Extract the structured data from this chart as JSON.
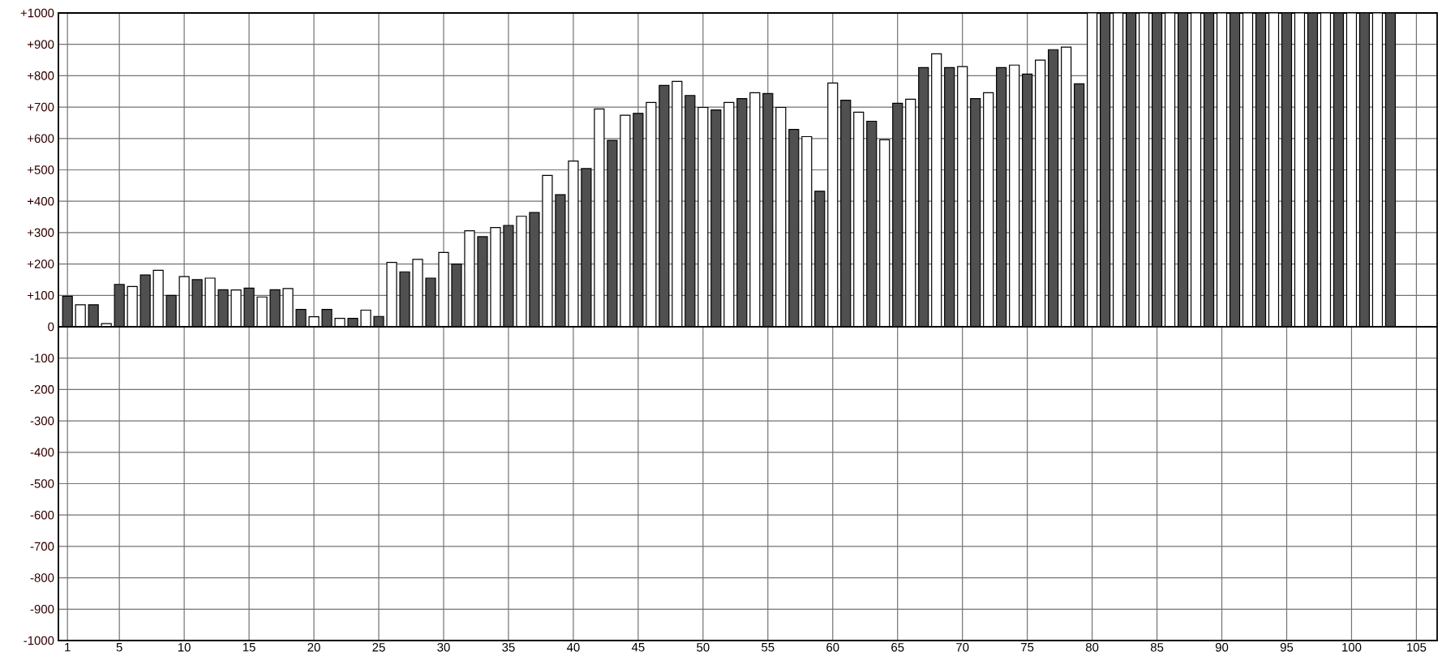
{
  "chart_data": {
    "type": "bar",
    "x": [
      1,
      2,
      3,
      4,
      5,
      6,
      7,
      8,
      9,
      10,
      11,
      12,
      13,
      14,
      15,
      16,
      17,
      18,
      19,
      20,
      21,
      22,
      23,
      24,
      25,
      26,
      27,
      28,
      29,
      30,
      31,
      32,
      33,
      34,
      35,
      36,
      37,
      38,
      39,
      40,
      41,
      42,
      43,
      44,
      45,
      46,
      47,
      48,
      49,
      50,
      51,
      52,
      53,
      54,
      55,
      56,
      57,
      58,
      59,
      60,
      61,
      62,
      63,
      64,
      65,
      66,
      67,
      68,
      69,
      70,
      71,
      72,
      73,
      74,
      75,
      76,
      77,
      78,
      79,
      80,
      81,
      82,
      83,
      84,
      85,
      86,
      87,
      88,
      89,
      90,
      91,
      92,
      93,
      94,
      95,
      96,
      97,
      98,
      99,
      100,
      101,
      102,
      103
    ],
    "values": [
      97,
      70,
      70,
      10,
      135,
      128,
      165,
      180,
      100,
      160,
      150,
      155,
      118,
      117,
      123,
      95,
      118,
      122,
      55,
      32,
      55,
      27,
      27,
      53,
      33,
      205,
      175,
      215,
      155,
      237,
      200,
      306,
      287,
      316,
      323,
      352,
      364,
      482,
      421,
      528,
      504,
      694,
      594,
      674,
      680,
      715,
      769,
      782,
      737,
      699,
      691,
      715,
      727,
      746,
      743,
      699,
      629,
      606,
      432,
      777,
      722,
      684,
      655,
      596,
      712,
      725,
      826,
      870,
      826,
      829,
      727,
      746,
      826,
      834,
      805,
      850,
      883,
      891,
      774,
      1000,
      1000,
      1000,
      1000,
      1000,
      1000,
      1000,
      1000,
      1000,
      1000,
      1000,
      1000,
      1000,
      1000,
      1000,
      1000,
      1000,
      1000,
      1000,
      1000,
      1000,
      1000,
      1000,
      1000
    ],
    "colors": [
      "#505050",
      "#ffffff",
      "#505050",
      "#ffffff",
      "#505050",
      "#ffffff",
      "#505050",
      "#ffffff",
      "#505050",
      "#ffffff",
      "#505050",
      "#ffffff",
      "#505050",
      "#ffffff",
      "#505050",
      "#ffffff",
      "#505050",
      "#ffffff",
      "#505050",
      "#ffffff",
      "#505050",
      "#ffffff",
      "#505050",
      "#ffffff",
      "#505050",
      "#ffffff",
      "#505050",
      "#ffffff",
      "#505050",
      "#ffffff",
      "#505050",
      "#ffffff",
      "#505050",
      "#ffffff",
      "#505050",
      "#ffffff",
      "#505050",
      "#ffffff",
      "#505050",
      "#ffffff",
      "#505050",
      "#ffffff",
      "#505050",
      "#ffffff",
      "#505050",
      "#ffffff",
      "#505050",
      "#ffffff",
      "#505050",
      "#ffffff",
      "#505050",
      "#ffffff",
      "#505050",
      "#ffffff",
      "#505050",
      "#ffffff",
      "#505050",
      "#ffffff",
      "#505050",
      "#ffffff",
      "#505050",
      "#ffffff",
      "#505050",
      "#ffffff",
      "#505050",
      "#ffffff",
      "#505050",
      "#ffffff",
      "#505050",
      "#ffffff",
      "#505050",
      "#ffffff",
      "#505050",
      "#ffffff",
      "#505050",
      "#ffffff",
      "#505050",
      "#ffffff",
      "#505050",
      "#ffffff",
      "#505050",
      "#ffffff",
      "#505050",
      "#ffffff",
      "#505050",
      "#ffffff",
      "#505050",
      "#ffffff",
      "#505050",
      "#ffffff",
      "#505050",
      "#ffffff",
      "#505050",
      "#ffffff",
      "#505050",
      "#ffffff",
      "#505050",
      "#ffffff",
      "#505050",
      "#ffffff",
      "#505050",
      "#ffffff",
      "#505050"
    ],
    "xlim": [
      0.3,
      106.6
    ],
    "xticks": [
      1,
      5,
      10,
      15,
      20,
      25,
      30,
      35,
      40,
      45,
      50,
      55,
      60,
      65,
      70,
      75,
      80,
      85,
      90,
      95,
      100,
      105
    ],
    "ylim": [
      -1000,
      1000
    ],
    "yticks": [
      {
        "value": 1000,
        "label": "+1000"
      },
      {
        "value": 900,
        "label": "+900"
      },
      {
        "value": 800,
        "label": "+800"
      },
      {
        "value": 700,
        "label": "+700"
      },
      {
        "value": 600,
        "label": "+600"
      },
      {
        "value": 500,
        "label": "+500"
      },
      {
        "value": 400,
        "label": "+400"
      },
      {
        "value": 300,
        "label": "+300"
      },
      {
        "value": 200,
        "label": "+200"
      },
      {
        "value": 100,
        "label": "+100"
      },
      0,
      -100,
      -200,
      -300,
      -400,
      -500,
      -600,
      -700,
      -800,
      -900,
      -1000
    ],
    "grid": true
  }
}
